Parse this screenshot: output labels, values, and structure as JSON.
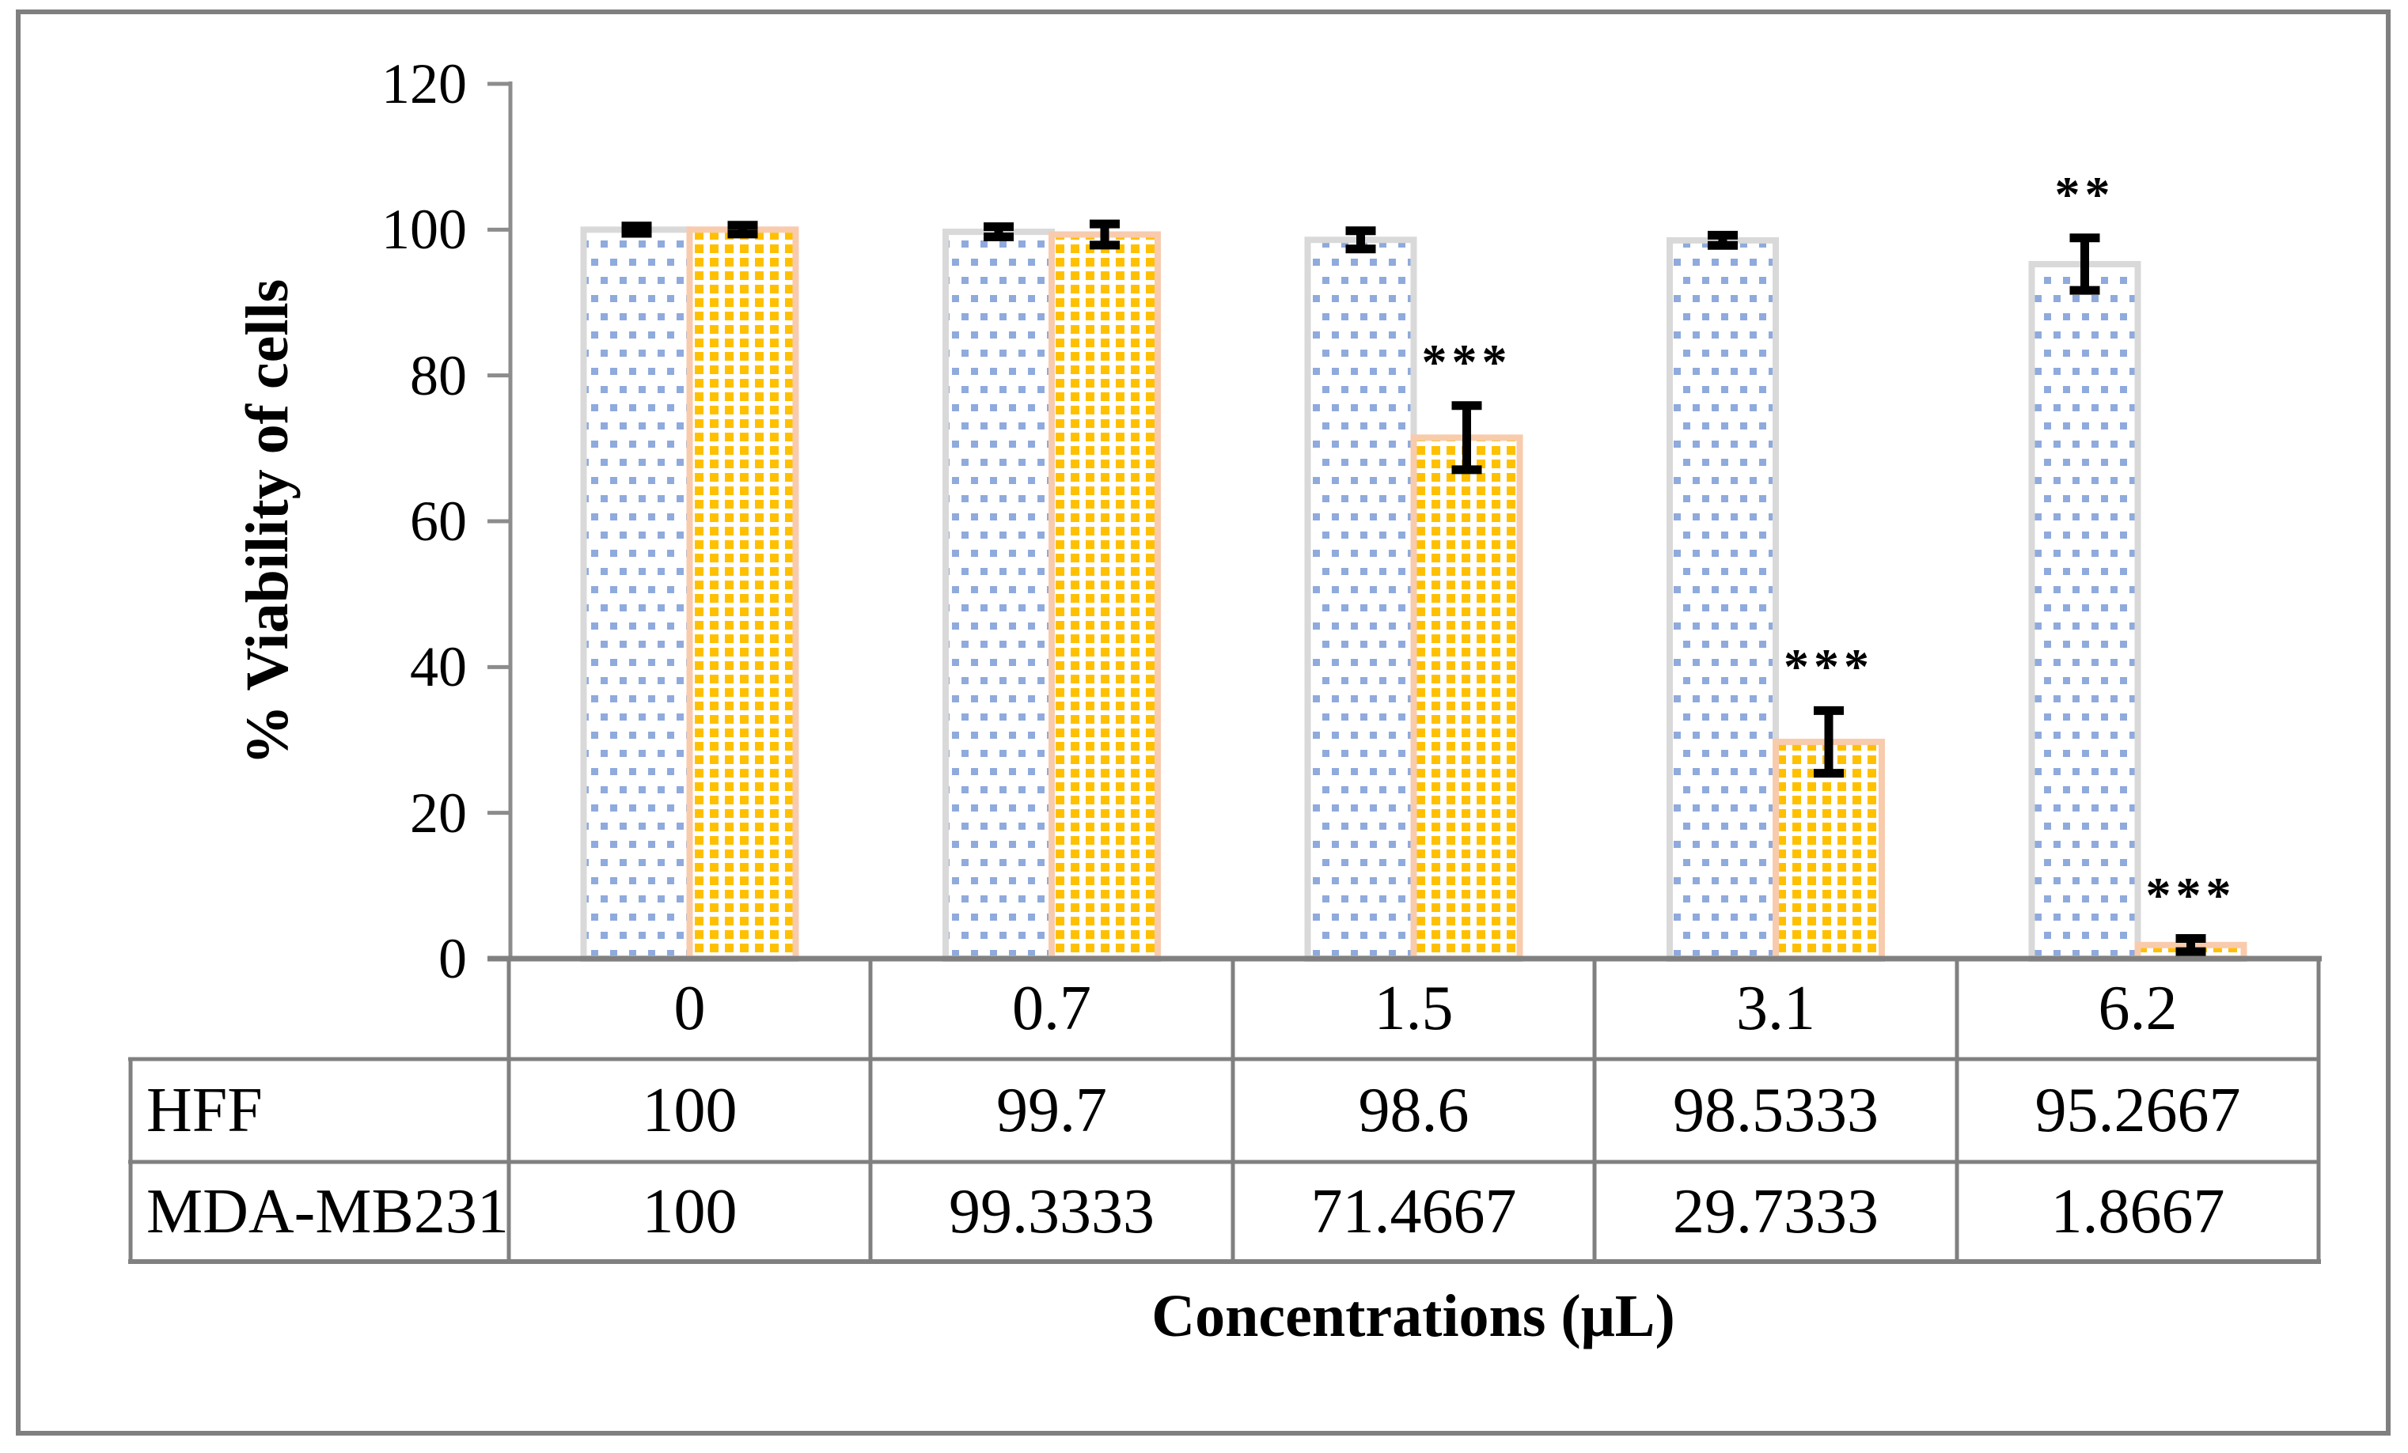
{
  "figure": {
    "y_axis_title": "% Viability of cells",
    "x_axis_title": "Concentrations (μL)",
    "y_ticks": [
      0,
      20,
      40,
      60,
      80,
      100,
      120
    ]
  },
  "chart_data": {
    "type": "bar",
    "title": "",
    "xlabel": "Concentrations (μL)",
    "ylabel": "% Viability of cells",
    "ylim": [
      0,
      120
    ],
    "grid": false,
    "legend_position": "none",
    "categories": [
      "0",
      "0.7",
      "1.5",
      "3.1",
      "6.2"
    ],
    "series": [
      {
        "name": "HFF",
        "values": [
          100,
          99.7,
          98.6,
          98.5333,
          95.2667
        ],
        "errors": [
          0.5,
          0.7,
          1.25,
          0.7,
          3.6
        ],
        "pattern": "offset-dots",
        "dot_color": "#8FAADC",
        "border_color": "#D9D9D9"
      },
      {
        "name": "MDA-MB231",
        "values": [
          100,
          99.3333,
          71.4667,
          29.7333,
          1.8667
        ],
        "errors": [
          0.6,
          1.45,
          4.4,
          4.3,
          0.9
        ],
        "pattern": "grid-dots",
        "dot_color": "#FFC000",
        "border_color": "#F8CBAD"
      }
    ],
    "significance": [
      {
        "series_index": 1,
        "series_name": "MDA-MB231",
        "category": "1.5",
        "label": "***"
      },
      {
        "series_index": 1,
        "series_name": "MDA-MB231",
        "category": "3.1",
        "label": "***"
      },
      {
        "series_index": 0,
        "series_name": "HFF",
        "category": "6.2",
        "label": "**"
      },
      {
        "series_index": 1,
        "series_name": "MDA-MB231",
        "category": "6.2",
        "label": "***"
      }
    ],
    "table": {
      "row_labels": [
        "HFF",
        "MDA-MB231"
      ],
      "column_headers": [
        "0",
        "0.7",
        "1.5",
        "3.1",
        "6.2"
      ],
      "rows": [
        [
          "100",
          "99.7",
          "98.6",
          "98.5333",
          "95.2667"
        ],
        [
          "100",
          "99.3333",
          "71.4667",
          "29.7333",
          "1.8667"
        ]
      ]
    }
  },
  "colors": {
    "figure_border": "#7F7F7F",
    "axis_line": "#8C8C8C",
    "table_line": "#808080",
    "error_bar": "#000000",
    "text": "#000000",
    "background": "#FFFFFF"
  }
}
